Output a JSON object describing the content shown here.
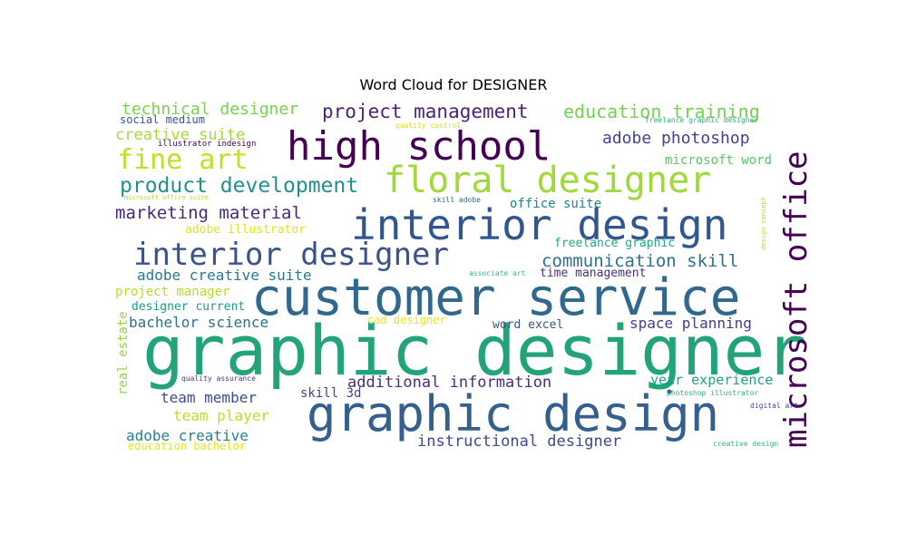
{
  "chart_data": {
    "type": "wordcloud",
    "title": "Word Cloud for DESIGNER",
    "words": [
      {
        "text": "graphic designer",
        "color": "#22a37a"
      },
      {
        "text": "customer service",
        "color": "#30688e"
      },
      {
        "text": "graphic design",
        "color": "#355f8d"
      },
      {
        "text": "interior design",
        "color": "#31578e"
      },
      {
        "text": "microsoft office",
        "color": "#440154"
      },
      {
        "text": "high school",
        "color": "#440154"
      },
      {
        "text": "floral designer",
        "color": "#9fda3a"
      },
      {
        "text": "interior designer",
        "color": "#3b528b"
      },
      {
        "text": "fine art",
        "color": "#c2df23"
      },
      {
        "text": "product development",
        "color": "#21918c"
      },
      {
        "text": "project management",
        "color": "#482475"
      },
      {
        "text": "education training",
        "color": "#75d054"
      },
      {
        "text": "communication skill",
        "color": "#2c728e"
      },
      {
        "text": "marketing material",
        "color": "#482878"
      },
      {
        "text": "technical designer",
        "color": "#7ad151"
      },
      {
        "text": "adobe photoshop",
        "color": "#414487"
      },
      {
        "text": "creative suite",
        "color": "#a5db36"
      },
      {
        "text": "additional information",
        "color": "#472d7b"
      },
      {
        "text": "instructional designer",
        "color": "#3e4a89"
      },
      {
        "text": "space planning",
        "color": "#433e85"
      },
      {
        "text": "adobe creative suite",
        "color": "#2a788e"
      },
      {
        "text": "bachelor science",
        "color": "#2c718e"
      },
      {
        "text": "adobe creative",
        "color": "#27808e"
      },
      {
        "text": "team member",
        "color": "#3e4c8a"
      },
      {
        "text": "team player",
        "color": "#bddf26"
      },
      {
        "text": "year experience",
        "color": "#1fa088"
      },
      {
        "text": "microsoft word",
        "color": "#58c765"
      },
      {
        "text": "project manager",
        "color": "#b5de2b"
      },
      {
        "text": "skill 3d",
        "color": "#404588"
      },
      {
        "text": "real estate",
        "color": "#95d840"
      },
      {
        "text": "office suite",
        "color": "#26828e"
      },
      {
        "text": "time management",
        "color": "#46307e"
      },
      {
        "text": "adobe illustrator",
        "color": "#e2e418"
      },
      {
        "text": "designer current",
        "color": "#1f9a8a"
      },
      {
        "text": "freelance graphic",
        "color": "#22a884"
      },
      {
        "text": "word excel",
        "color": "#3b528b"
      },
      {
        "text": "cad designer",
        "color": "#f1e51d"
      },
      {
        "text": "education bachelor",
        "color": "#e5e419"
      },
      {
        "text": "social medium",
        "color": "#3a548c"
      },
      {
        "text": "illustrator indesign",
        "color": "#440154"
      },
      {
        "text": "quality control",
        "color": "#d8e219"
      },
      {
        "text": "freelance graphic designer",
        "color": "#29af7f"
      },
      {
        "text": "microsoft office suite",
        "color": "#b8de29"
      },
      {
        "text": "skill adobe",
        "color": "#31688e"
      },
      {
        "text": "design concept",
        "color": "#addc30"
      },
      {
        "text": "associate art",
        "color": "#3bbb75"
      },
      {
        "text": "quality assurance",
        "color": "#443983"
      },
      {
        "text": "photoshop illustrator",
        "color": "#2db27d"
      },
      {
        "text": "digital art",
        "color": "#3e4989"
      },
      {
        "text": "creative design",
        "color": "#34b679"
      }
    ]
  }
}
